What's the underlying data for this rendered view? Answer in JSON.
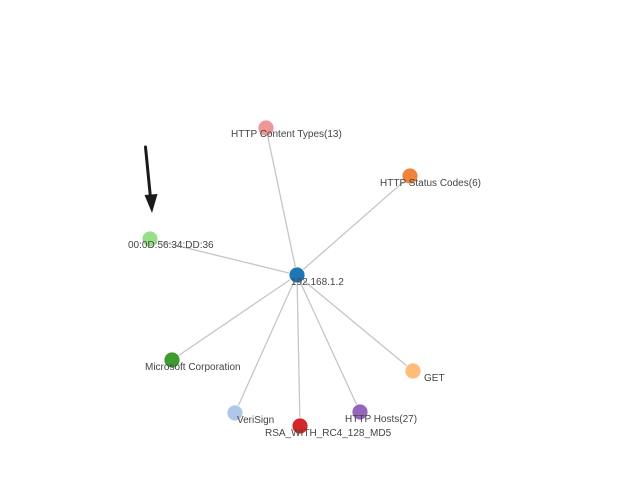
{
  "graph": {
    "hub": "n_hub",
    "nodes": [
      {
        "id": "n_hub",
        "label": "192.168.1.2",
        "color": "#1f77b4"
      },
      {
        "id": "n_content",
        "label": "HTTP Content Types(13)",
        "color": "#ee9797"
      },
      {
        "id": "n_status",
        "label": "HTTP Status Codes(6)",
        "color": "#f0833a"
      },
      {
        "id": "n_mac",
        "label": "00:0D:56:34:DD:36",
        "color": "#98df8a"
      },
      {
        "id": "n_ms",
        "label": "Microsoft Corporation",
        "color": "#3f9a2f"
      },
      {
        "id": "n_get",
        "label": "GET",
        "color": "#ffbb78"
      },
      {
        "id": "n_verisign",
        "label": "VeriSign",
        "color": "#aec7e8"
      },
      {
        "id": "n_rsa",
        "label": "RSA_WITH_RC4_128_MD5",
        "color": "#d62728"
      },
      {
        "id": "n_hosts",
        "label": "HTTP Hosts(27)",
        "color": "#9467bd"
      }
    ],
    "edges": [
      [
        "n_hub",
        "n_content"
      ],
      [
        "n_hub",
        "n_status"
      ],
      [
        "n_hub",
        "n_mac"
      ],
      [
        "n_hub",
        "n_ms"
      ],
      [
        "n_hub",
        "n_get"
      ],
      [
        "n_hub",
        "n_verisign"
      ],
      [
        "n_hub",
        "n_rsa"
      ],
      [
        "n_hub",
        "n_hosts"
      ]
    ],
    "edge_color": "#c6c6c6",
    "annotation": {
      "type": "arrow",
      "points_to": "n_mac",
      "color": "#1a1a1a"
    }
  }
}
